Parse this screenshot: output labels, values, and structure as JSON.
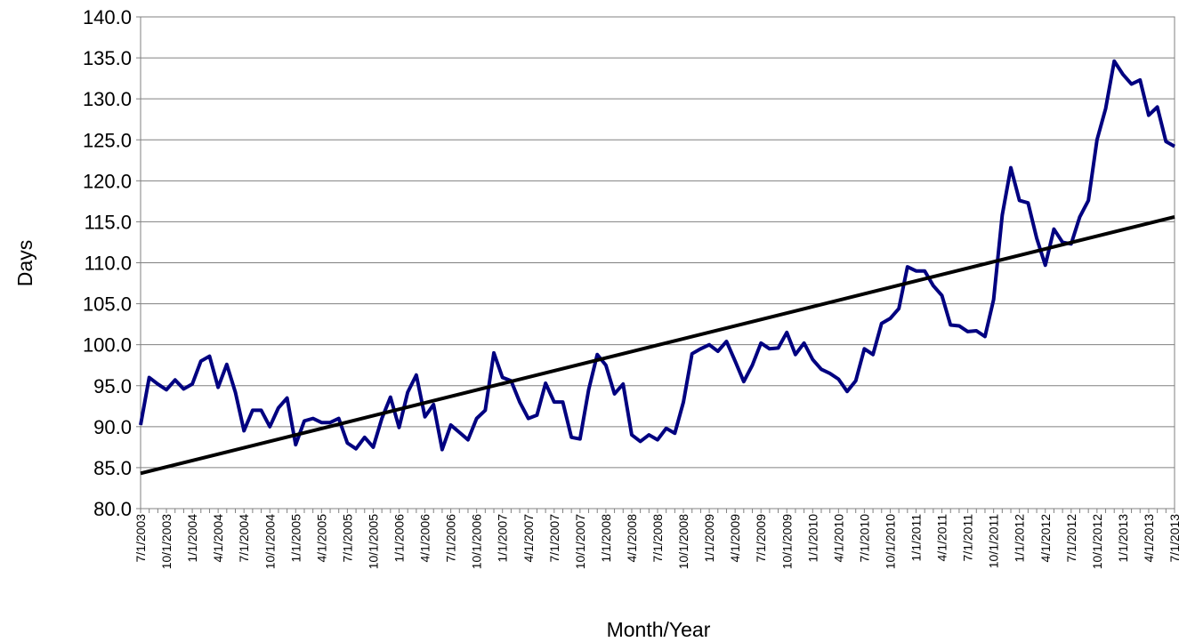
{
  "chart_data": {
    "type": "line",
    "x_label": "Month/Year",
    "y_label": "Days",
    "categories": [
      "7/1/2003",
      null,
      null,
      "10/1/2003",
      null,
      null,
      "1/1/2004",
      null,
      null,
      "4/1/2004",
      null,
      null,
      "7/1/2004",
      null,
      null,
      "10/1/2004",
      null,
      null,
      "1/1/2005",
      null,
      null,
      "4/1/2005",
      null,
      null,
      "7/1/2005",
      null,
      null,
      "10/1/2005",
      null,
      null,
      "1/1/2006",
      null,
      null,
      "4/1/2006",
      null,
      null,
      "7/1/2006",
      null,
      null,
      "10/1/2006",
      null,
      null,
      "1/1/2007",
      null,
      null,
      "4/1/2007",
      null,
      null,
      "7/1/2007",
      null,
      null,
      "10/1/2007",
      null,
      null,
      "1/1/2008",
      null,
      null,
      "4/1/2008",
      null,
      null,
      "7/1/2008",
      null,
      null,
      "10/1/2008",
      null,
      null,
      "1/1/2009",
      null,
      null,
      "4/1/2009",
      null,
      null,
      "7/1/2009",
      null,
      null,
      "10/1/2009",
      null,
      null,
      "1/1/2010",
      null,
      null,
      "4/1/2010",
      null,
      null,
      "7/1/2010",
      null,
      null,
      "10/1/2010",
      null,
      null,
      "1/1/2011",
      null,
      null,
      "4/1/2011",
      null,
      null,
      "7/1/2011",
      null,
      null,
      "10/1/2011",
      null,
      null,
      "1/1/2012",
      null,
      null,
      "4/1/2012",
      null,
      null,
      "7/1/2012",
      null,
      null,
      "10/1/2012",
      null,
      null,
      "1/1/2013",
      null,
      null,
      "4/1/2013",
      null,
      null,
      "7/1/2013"
    ],
    "series": [
      {
        "color": "#000080",
        "values": [
          90.2,
          96.0,
          95.2,
          94.5,
          95.7,
          94.6,
          95.2,
          98.0,
          98.6,
          94.8,
          97.6,
          94.2,
          89.5,
          92.0,
          92.0,
          90.0,
          92.3,
          93.5,
          87.8,
          90.7,
          91.0,
          90.5,
          90.5,
          91.0,
          88.0,
          87.3,
          88.7,
          87.5,
          91.0,
          93.6,
          89.9,
          94.2,
          96.3,
          91.2,
          92.7,
          87.2,
          90.2,
          89.3,
          88.4,
          91.0,
          92.0,
          99.0,
          96.0,
          95.6,
          93.0,
          91.0,
          91.4,
          95.3,
          93.0,
          93.0,
          88.7,
          88.5,
          94.5,
          98.8,
          97.5,
          94.0,
          95.2,
          89.0,
          88.2,
          89.0,
          88.4,
          89.8,
          89.2,
          93.0,
          98.9,
          99.5,
          100.0,
          99.2,
          100.4,
          98.0,
          95.5,
          97.5,
          100.2,
          99.5,
          99.6,
          101.5,
          98.8,
          100.2,
          98.2,
          97.0,
          96.5,
          95.8,
          94.3,
          95.6,
          99.5,
          98.8,
          102.6,
          103.2,
          104.4,
          109.5,
          109.0,
          109.0,
          107.2,
          106.0,
          102.4,
          102.3,
          101.6,
          101.7,
          101.0,
          105.5,
          115.8,
          121.6,
          117.6,
          117.3,
          113.0,
          109.7,
          114.1,
          112.5,
          112.3,
          115.6,
          117.6,
          125.0,
          128.8,
          134.6,
          133.0,
          131.8,
          132.3,
          128.0,
          129.0,
          124.8,
          124.2
        ]
      }
    ],
    "trendline": {
      "color": "#000000",
      "start": 84.3,
      "end": 115.6
    },
    "ylim": [
      80,
      140
    ],
    "yticks": [
      {
        "value": 80,
        "label": "80.0"
      },
      {
        "value": 85,
        "label": "85.0"
      },
      {
        "value": 90,
        "label": "90.0"
      },
      {
        "value": 95,
        "label": "95.0"
      },
      {
        "value": 100,
        "label": "100.0"
      },
      {
        "value": 105,
        "label": "105.0"
      },
      {
        "value": 110,
        "label": "110.0"
      },
      {
        "value": 115,
        "label": "115.0"
      },
      {
        "value": 120,
        "label": "120.0"
      },
      {
        "value": 125,
        "label": "125.0"
      },
      {
        "value": 130,
        "label": "130.0"
      },
      {
        "value": 135,
        "label": "135.0"
      },
      {
        "value": 140,
        "label": "140.0"
      }
    ],
    "grid": true
  }
}
